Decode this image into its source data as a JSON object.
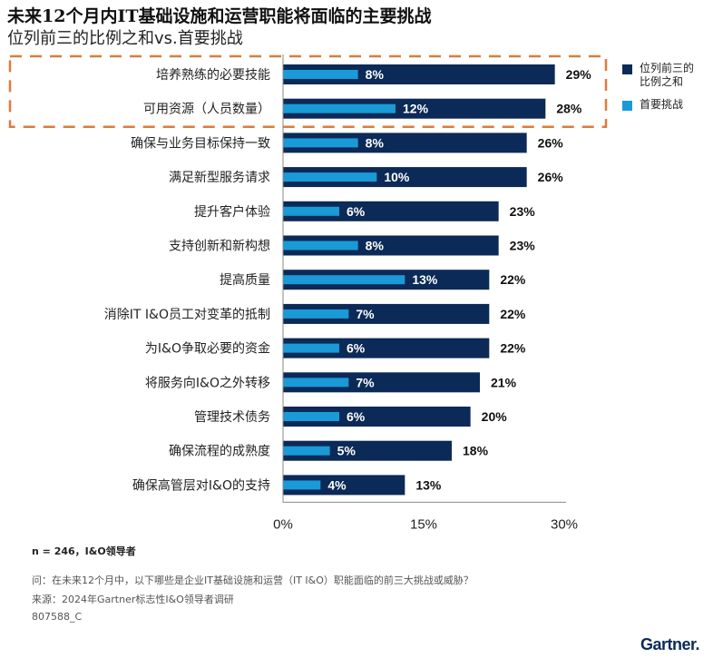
{
  "header": {
    "title": "未来12个月内IT基础设施和运营职能将面临的主要挑战",
    "subtitle": "位列前三的比例之和vs.首要挑战"
  },
  "colors": {
    "top3": "#0b2a57",
    "top1": "#1a9ad6",
    "highlight": "#e07a3a",
    "axis": "#8a8a8a"
  },
  "legend": [
    {
      "label": "位列前三的比例之和",
      "line1": "位列前三的",
      "line2": "比例之和",
      "color": "#0b2a57"
    },
    {
      "label": "首要挑战",
      "line1": "首要挑战",
      "line2": "",
      "color": "#1a9ad6"
    }
  ],
  "chart_data": {
    "type": "bar",
    "orientation": "horizontal",
    "title": "未来12个月内IT基础设施和运营职能将面临的主要挑战",
    "subtitle": "位列前三的比例之和vs.首要挑战",
    "categories": [
      "培养熟练的必要技能",
      "可用资源（人员数量）",
      "确保与业务目标保持一致",
      "满足新型服务请求",
      "提升客户体验",
      "支持创新和新构想",
      "提高质量",
      "消除IT I&O员工对变革的抵制",
      "为I&O争取必要的资金",
      "将服务向I&O之外转移",
      "管理技术债务",
      "确保流程的成熟度",
      "确保高管层对I&O的支持"
    ],
    "series": [
      {
        "name": "位列前三的比例之和",
        "values": [
          29,
          28,
          26,
          26,
          23,
          23,
          22,
          22,
          22,
          21,
          20,
          18,
          13
        ]
      },
      {
        "name": "首要挑战",
        "values": [
          8,
          12,
          8,
          10,
          6,
          8,
          13,
          7,
          6,
          7,
          6,
          5,
          4
        ]
      }
    ],
    "xlim": [
      0,
      30
    ],
    "xticks": [
      0,
      15,
      30
    ],
    "xtick_labels": [
      "0%",
      "15%",
      "30%"
    ],
    "value_suffix": "%",
    "highlighted_categories": [
      "培养熟练的必要技能",
      "可用资源（人员数量）"
    ],
    "grid": false,
    "legend_position": "right"
  },
  "footer": {
    "sample": "n = 246，I&O领导者",
    "question": "问：在未来12个月中，以下哪些是企业IT基础设施和运营（IT I&O）职能面临的前三大挑战或威胁？",
    "source": "来源：2024年Gartner标志性I&O领导者调研",
    "id": "807588_C",
    "logo": "Gartner."
  }
}
